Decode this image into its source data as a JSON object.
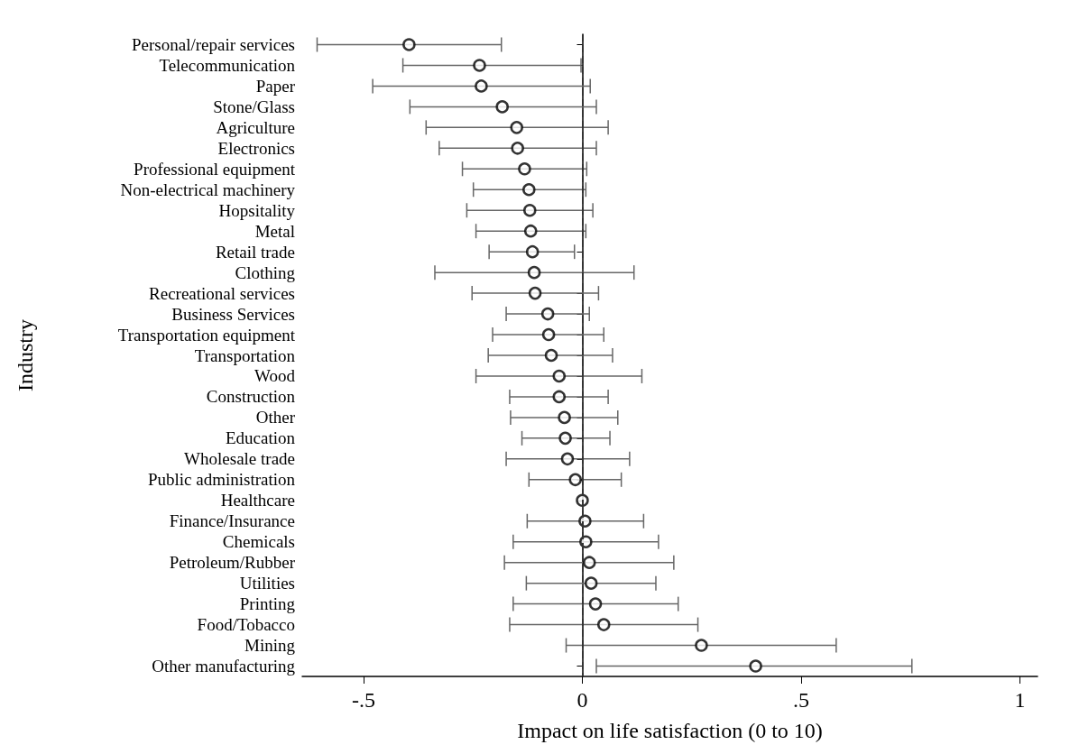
{
  "chart_data": {
    "type": "scatter",
    "orientation": "horizontal",
    "xlabel": "Impact on life satisfaction (0 to 10)",
    "ylabel": "Industry",
    "categories": [
      "Personal/repair services",
      "Telecommunication",
      "Paper",
      "Stone/Glass",
      "Agriculture",
      "Electronics",
      "Professional equipment",
      "Non-electrical machinery",
      "Hopsitality",
      "Metal",
      "Retail trade",
      "Clothing",
      "Recreational services",
      "Business Services",
      "Transportation equipment",
      "Transportation",
      "Wood",
      "Construction",
      "Other",
      "Education",
      "Wholesale trade",
      "Public administration",
      "Healthcare",
      "Finance/Insurance",
      "Chemicals",
      "Petroleum/Rubber",
      "Utilities",
      "Printing",
      "Food/Tobacco",
      "Mining",
      "Other manufacturing"
    ],
    "values": [
      -0.396,
      -0.235,
      -0.231,
      -0.183,
      -0.15,
      -0.148,
      -0.132,
      -0.122,
      -0.12,
      -0.118,
      -0.114,
      -0.11,
      -0.108,
      -0.079,
      -0.077,
      -0.071,
      -0.053,
      -0.053,
      -0.041,
      -0.039,
      -0.034,
      -0.016,
      0,
      0.006,
      0.008,
      0.016,
      0.02,
      0.03,
      0.049,
      0.272,
      0.396
    ],
    "errors": [
      [
        -0.606,
        -0.185
      ],
      [
        -0.41,
        -0.003
      ],
      [
        -0.479,
        0.018
      ],
      [
        -0.394,
        0.032
      ],
      [
        -0.357,
        0.059
      ],
      [
        -0.327,
        0.032
      ],
      [
        -0.274,
        0.01
      ],
      [
        -0.249,
        0.008
      ],
      [
        -0.264,
        0.024
      ],
      [
        -0.243,
        0.008
      ],
      [
        -0.213,
        -0.018
      ],
      [
        -0.337,
        0.118
      ],
      [
        -0.252,
        0.037
      ],
      [
        -0.174,
        0.016
      ],
      [
        -0.205,
        0.049
      ],
      [
        -0.215,
        0.069
      ],
      [
        -0.243,
        0.136
      ],
      [
        -0.166,
        0.059
      ],
      [
        -0.164,
        0.081
      ],
      [
        -0.138,
        0.063
      ],
      [
        -0.174,
        0.108
      ],
      [
        -0.122,
        0.089
      ],
      null,
      [
        -0.126,
        0.14
      ],
      [
        -0.158,
        0.174
      ],
      [
        -0.178,
        0.209
      ],
      [
        -0.128,
        0.168
      ],
      [
        -0.158,
        0.219
      ],
      [
        -0.166,
        0.264
      ],
      [
        -0.037,
        0.58
      ],
      [
        0.032,
        0.753
      ]
    ],
    "color": "#000000",
    "marker": "circle",
    "grid": false,
    "xlim": [
      -0.64,
      1.04
    ],
    "xticks": [
      {
        "value": -0.5,
        "label": "-.5"
      },
      0,
      {
        "value": 0.5,
        "label": ".5"
      },
      1
    ],
    "ref_lines": [
      {
        "axis": "x",
        "value": 0,
        "color": "#333333",
        "line_style": "dashed"
      }
    ]
  }
}
